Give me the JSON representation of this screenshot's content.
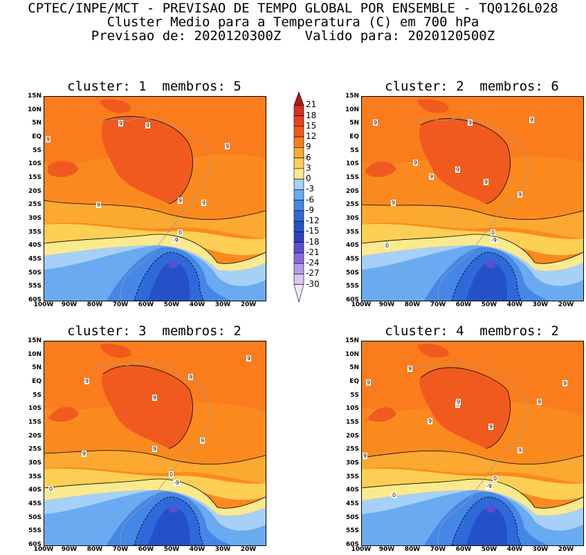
{
  "header": {
    "line1": "CPTEC/INPE/MCT - PREVISAO DE TEMPO GLOBAL POR ENSEMBLE - TQ0126L028",
    "line2": "Cluster Medio para a Temperatura (C) em 700 hPa",
    "line3": "Previsao de: 2020120300Z   Valido para: 2020120500Z"
  },
  "panels": [
    {
      "title": "cluster: 1  membros: 5"
    },
    {
      "title": "cluster: 2  membros: 6"
    },
    {
      "title": "cluster: 3  membros: 2"
    },
    {
      "title": "cluster: 4  membros: 2"
    }
  ],
  "lat_ticks": [
    "15N",
    "10N",
    "5N",
    "EQ",
    "5S",
    "10S",
    "15S",
    "20S",
    "25S",
    "30S",
    "35S",
    "40S",
    "45S",
    "50S",
    "55S",
    "60S"
  ],
  "lon_ticks": [
    "100W",
    "90W",
    "80W",
    "70W",
    "60W",
    "50W",
    "40W",
    "30W",
    "20W"
  ],
  "colorbar": {
    "levels": [
      "21",
      "18",
      "15",
      "12",
      "9",
      "6",
      "3",
      "0",
      "-3",
      "-6",
      "-9",
      "-12",
      "-15",
      "-18",
      "-21",
      "-24",
      "-27",
      "-30"
    ],
    "colors": [
      "#b2181b",
      "#d7301f",
      "#e8401c",
      "#f15a1e",
      "#fb7c1d",
      "#fba931",
      "#fdcf55",
      "#fbe98e",
      "#a6d0f7",
      "#6aaaf0",
      "#4587e6",
      "#2f69d9",
      "#2451c8",
      "#2f3fc4",
      "#5a4fd0",
      "#8a6be0",
      "#b49bea",
      "#d8c6f4",
      "#efe7fb"
    ]
  },
  "contour_labels": {
    "p1": [
      "9",
      "9",
      "9",
      "9",
      "9",
      "9",
      "9",
      "0",
      "-9"
    ],
    "p2": [
      "9",
      "9",
      "9",
      "9",
      "9",
      "9",
      "9",
      "9",
      "9",
      "0",
      "0",
      "-9"
    ],
    "p3": [
      "9",
      "9",
      "9",
      "9",
      "9",
      "9",
      "9",
      "0",
      "0",
      "-9"
    ],
    "p4": [
      "9",
      "9",
      "9",
      "9",
      "9",
      "9",
      "9",
      "9",
      "9",
      "9",
      "0",
      "0",
      "-9"
    ]
  }
}
